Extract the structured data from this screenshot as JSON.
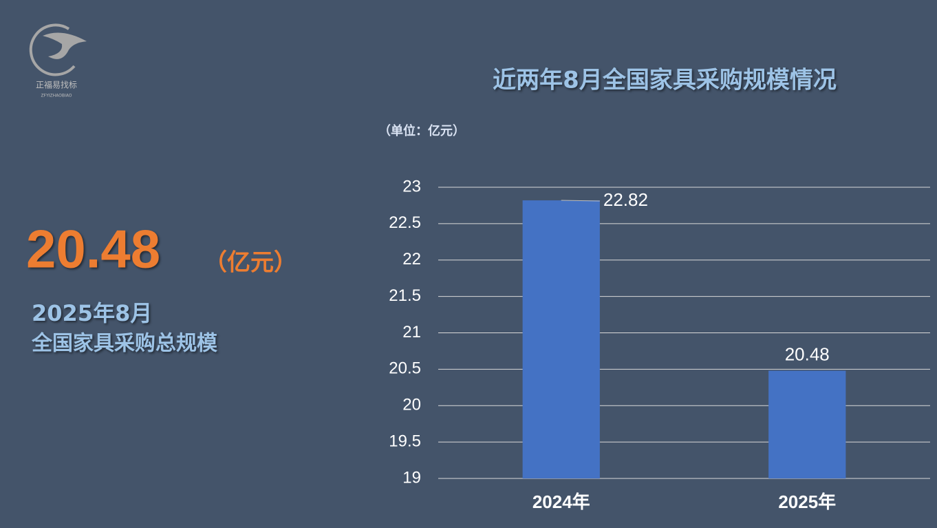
{
  "logo": {
    "name": "正福易找标",
    "name_en": "ZFYIZHAOBIAO"
  },
  "highlight": {
    "value": "20.48",
    "unit": "（亿元）",
    "caption": [
      "2025年8月",
      "全国家具采购总规模"
    ]
  },
  "chart_data": {
    "type": "bar",
    "title": "近两年8月全国家具采购规模情况",
    "subtitle": "（单位：亿元）",
    "categories": [
      "2024年",
      "2025年"
    ],
    "values": [
      22.82,
      20.48
    ],
    "color": "#4472c4",
    "ylim": [
      19,
      23
    ],
    "yticks": [
      19,
      19.5,
      20,
      20.5,
      21,
      21.5,
      22,
      22.5,
      23
    ],
    "grid": true
  }
}
